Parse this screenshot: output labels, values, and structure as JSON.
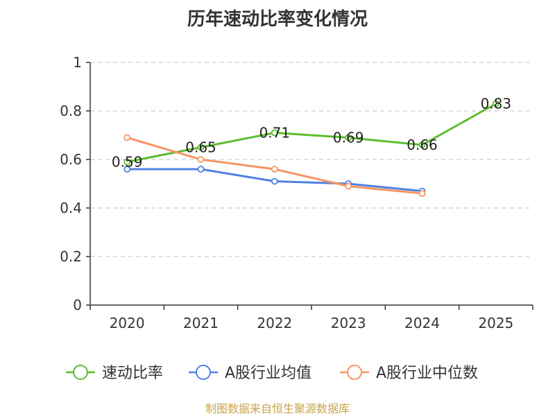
{
  "chart_data": {
    "type": "line",
    "title": "历年速动比率变化情况",
    "categories": [
      "2020",
      "2021",
      "2022",
      "2023",
      "2024",
      "2025"
    ],
    "ylim": [
      0,
      1
    ],
    "yticks": [
      0,
      0.2,
      0.4,
      0.6,
      0.8,
      1
    ],
    "ytick_labels": [
      "0",
      "0.2",
      "0.4",
      "0.6",
      "0.8",
      "1"
    ],
    "grid": true,
    "legend_position": "bottom",
    "series": [
      {
        "name": "速动比率",
        "color": "#5cbd2f",
        "values": [
          0.59,
          0.65,
          0.71,
          0.69,
          0.66,
          0.83
        ],
        "labels": [
          "0.59",
          "0.65",
          "0.71",
          "0.69",
          "0.66",
          "0.83"
        ]
      },
      {
        "name": "A股行业均值",
        "color": "#4f81e0",
        "values": [
          0.56,
          0.56,
          0.51,
          0.5,
          0.47,
          null
        ]
      },
      {
        "name": "A股行业中位数",
        "color": "#f59563",
        "values": [
          0.69,
          0.6,
          0.56,
          0.49,
          0.46,
          null
        ]
      }
    ],
    "source": "制图数据来自恒生聚源数据库"
  }
}
